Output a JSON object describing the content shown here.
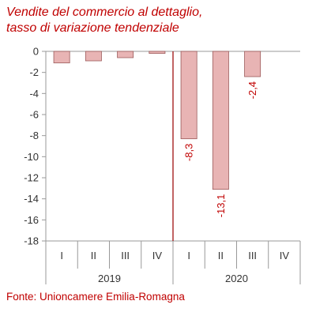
{
  "chart_data": {
    "type": "bar",
    "title_lines": [
      "Vendite del commercio al dettaglio,",
      "tasso di variazione tendenziale"
    ],
    "categories": [
      "I",
      "II",
      "III",
      "IV",
      "I",
      "II",
      "III",
      "IV"
    ],
    "groups": [
      {
        "label": "2019",
        "span": 4
      },
      {
        "label": "2020",
        "span": 4
      }
    ],
    "values": [
      -1.1,
      -0.9,
      -0.6,
      -0.2,
      -8.3,
      -13.1,
      -2.4,
      null
    ],
    "data_labels": [
      "",
      "",
      "",
      "",
      "-8,3",
      "-13,1",
      "-2,4",
      ""
    ],
    "yticks": [
      0,
      -2,
      -4,
      -6,
      -8,
      -10,
      -12,
      -14,
      -16,
      -18
    ],
    "ytick_labels": [
      "0",
      "-2",
      "-4",
      "-6",
      "-8",
      "-10",
      "-12",
      "-14",
      "-16",
      "-18"
    ],
    "ylim": [
      -18,
      0
    ],
    "divider_between": [
      3,
      4
    ],
    "grid": false,
    "colors": {
      "bar_fill": "#e8b4b4",
      "bar_stroke": "#9b5a5a",
      "data_label": "#c00000",
      "divider": "#a01010",
      "axis": "#999999",
      "text_accent": "#c00000"
    },
    "source": "Fonte: Unioncamere Emilia-Romagna"
  }
}
